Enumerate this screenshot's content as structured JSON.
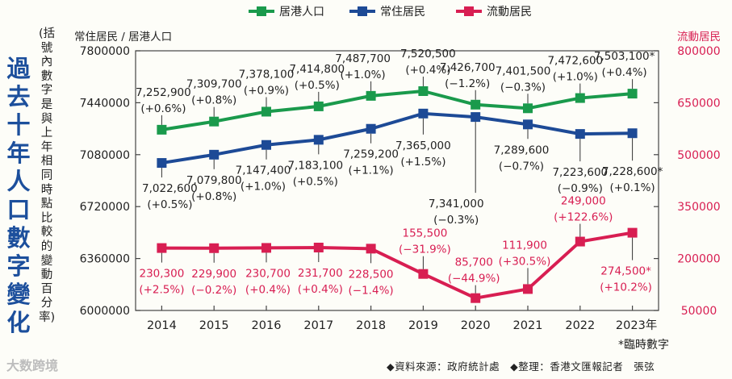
{
  "logo_text": "大数跨境",
  "chart_data": {
    "type": "line",
    "title": "過去十年人口數字變化",
    "note": "(括號內數字是與上年相同時點比較的變動百分率)",
    "categories": [
      "2014",
      "2015",
      "2016",
      "2017",
      "2018",
      "2019",
      "2020",
      "2021",
      "2022",
      "2023年"
    ],
    "left_axis": {
      "label": "常住居民 / 居港人口",
      "min": 6000000,
      "max": 7800000,
      "ticks": [
        6000000,
        6360000,
        6720000,
        7080000,
        7440000,
        7800000
      ],
      "tick_labels": [
        "6000000",
        "6360000",
        "6720000",
        "7080000",
        "7440000",
        "7800000"
      ]
    },
    "right_axis": {
      "label": "流動居民",
      "min": 50000,
      "max": 800000,
      "ticks": [
        50000,
        200000,
        350000,
        500000,
        650000,
        800000
      ],
      "tick_labels": [
        "50000",
        "200000",
        "350000",
        "500000",
        "650000",
        "800000"
      ]
    },
    "legend": [
      "居港人口",
      "常住居民",
      "流動居民"
    ],
    "series": [
      {
        "name": "居港人口",
        "color": "#1a9a4c",
        "axis": "left",
        "values": [
          7252900,
          7309700,
          7378100,
          7414800,
          7487700,
          7520500,
          7426700,
          7401500,
          7472600,
          7503100
        ],
        "labels": [
          "7,252,900",
          "7,309,700",
          "7,378,100",
          "7,414,800",
          "7,487,700",
          "7,520,500",
          "7,426,700",
          "7,401,500",
          "7,472,600",
          "7,503,100*"
        ],
        "changes": [
          "(+0.6%)",
          "(+0.8%)",
          "(+0.9%)",
          "(+0.5%)",
          "(+1.0%)",
          "(+0.4%)",
          "(−1.2%)",
          "(−0.3%)",
          "(+1.0%)",
          "(+0.4%)"
        ]
      },
      {
        "name": "常住居民",
        "color": "#1d4a96",
        "axis": "left",
        "values": [
          7022600,
          7079800,
          7147400,
          7183100,
          7259200,
          7365000,
          7341000,
          7289600,
          7223600,
          7228600
        ],
        "labels": [
          "7,022,600",
          "7,079,800",
          "7,147,400",
          "7,183,100",
          "7,259,200",
          "7,365,000",
          "7,341,000",
          "7,289,600",
          "7,223,600",
          "7,228,600*"
        ],
        "changes": [
          "(+0.5%)",
          "(+0.8%)",
          "(+1.0%)",
          "(+0.5%)",
          "(+1.1%)",
          "(+1.5%)",
          "(−0.3%)",
          "(−0.7%)",
          "(−0.9%)",
          "(+0.1%)"
        ]
      },
      {
        "name": "流動居民",
        "color": "#d81e52",
        "axis": "right",
        "values": [
          230300,
          229900,
          230700,
          231700,
          228500,
          155500,
          85700,
          111900,
          249000,
          274500
        ],
        "labels": [
          "230,300",
          "229,900",
          "230,700",
          "231,700",
          "228,500",
          "155,500",
          "85,700",
          "111,900",
          "249,000",
          "274,500*"
        ],
        "changes": [
          "(+2.5%)",
          "(−0.2%)",
          "(+0.4%)",
          "(+0.4%)",
          "(−1.4%)",
          "(−31.9%)",
          "(−44.9%)",
          "(+30.5%)",
          "(+122.6%)",
          "(+10.2%)"
        ]
      }
    ],
    "footnote": "*臨時數字",
    "source": "◆資料來源：政府統計處　◆整理：香港文匯報記者　張弦"
  }
}
